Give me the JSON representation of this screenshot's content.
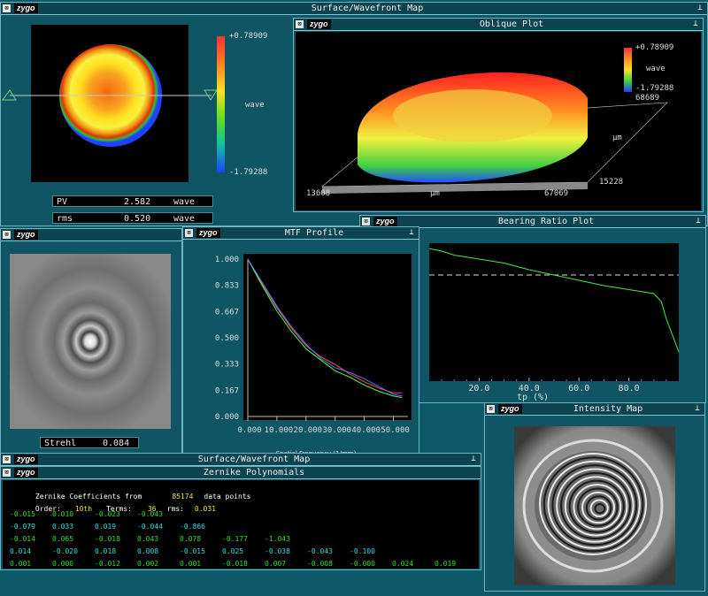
{
  "logo": "zygo",
  "close_glyph": "⊠",
  "pin_glyph": "⊥",
  "surface_map": {
    "title": "Surface/Wavefront Map",
    "scale_max": "+0.78909",
    "scale_min": "-1.79288",
    "unit": "wave",
    "pv_label": "PV",
    "pv_value": "2.582",
    "pv_unit": "wave",
    "rms_label": "rms",
    "rms_value": "0.520",
    "rms_unit": "wave"
  },
  "oblique_plot": {
    "title": "Oblique Plot",
    "scale_max": "+0.78909",
    "unit": "wave",
    "scale_min": "-1.79288",
    "z_extent": "68689",
    "x_min": "13608",
    "x_unit": "µm",
    "x_max": "67069",
    "y_unit": "µm",
    "y_min": "15228"
  },
  "psf": {
    "strehl_label": "Strehl",
    "strehl_value": "0.084"
  },
  "mtf_profile": {
    "title": "MTF Profile",
    "xlabel": "Spatial Frequency (1/mm)"
  },
  "bearing_ratio": {
    "title": "Bearing Ratio Plot",
    "xlabel": "tp (%)"
  },
  "intensity_map": {
    "title": "Intensity Map"
  },
  "zernike": {
    "back_title": "Surface/Wavefront Map",
    "title": "Zernike Polynomials",
    "header_prefix": "Zernike Coefficients from",
    "points": "85174",
    "header_suffix": "data points",
    "order_label": "Order:",
    "order_value": "10th",
    "terms_label": "Terms:",
    "terms_value": "36",
    "rms_label": "rms:",
    "rms_value": "0.031",
    "rows": [
      {
        "color": "#33dd33",
        "values": [
          "-0.015",
          "0.010",
          "-0.023",
          "-0.043"
        ]
      },
      {
        "color": "#33dddd",
        "values": [
          "-0.079",
          "0.033",
          "0.019",
          "-0.044",
          "-0.866"
        ]
      },
      {
        "color": "#33dd33",
        "values": [
          "-0.014",
          "0.065",
          "-0.018",
          "0.043",
          "0.078",
          "-0.177",
          "-1.043"
        ]
      },
      {
        "color": "#33dddd",
        "values": [
          "0.014",
          "-0.020",
          "0.018",
          "0.008",
          "-0.015",
          "0.025",
          "-0.038",
          "-0.043",
          "-0.100"
        ]
      },
      {
        "color": "#33dd33",
        "values": [
          "0.001",
          "0.000",
          "-0.012",
          "0.002",
          "0.001",
          "-0.018",
          "0.007",
          "-0.008",
          "-0.000",
          "0.024",
          "0.019"
        ]
      }
    ]
  },
  "chart_data": [
    {
      "type": "line",
      "title": "MTF Profile",
      "xlabel": "Spatial Frequency (1/mm)",
      "ylabel": "",
      "xlim": [
        0,
        55
      ],
      "ylim": [
        0,
        1
      ],
      "x_ticks": [
        "0.000",
        "10.000",
        "20.000",
        "30.000",
        "40.000",
        "50.000"
      ],
      "y_ticks": [
        "1.000",
        "0.833",
        "0.667",
        "0.500",
        "0.333",
        "0.167",
        "0.000"
      ],
      "series": [
        {
          "color": "#ff5050",
          "x": [
            0,
            5,
            10,
            15,
            20,
            25,
            30,
            35,
            40,
            45,
            50,
            53
          ],
          "y": [
            1.0,
            0.84,
            0.69,
            0.56,
            0.45,
            0.38,
            0.33,
            0.27,
            0.22,
            0.18,
            0.15,
            0.15
          ]
        },
        {
          "color": "#50ff50",
          "x": [
            0,
            5,
            10,
            15,
            20,
            25,
            30,
            35,
            40,
            45,
            50,
            53
          ],
          "y": [
            1.0,
            0.83,
            0.67,
            0.54,
            0.43,
            0.36,
            0.29,
            0.25,
            0.2,
            0.16,
            0.13,
            0.12
          ]
        },
        {
          "color": "#5080ff",
          "x": [
            0,
            5,
            10,
            15,
            20,
            25,
            30,
            35,
            40,
            45,
            50,
            53
          ],
          "y": [
            1.0,
            0.85,
            0.7,
            0.57,
            0.46,
            0.37,
            0.31,
            0.28,
            0.24,
            0.19,
            0.14,
            0.13
          ]
        }
      ]
    },
    {
      "type": "line",
      "title": "Bearing Ratio Plot",
      "xlabel": "tp (%)",
      "xlim": [
        0,
        100
      ],
      "ylim": [
        0,
        1
      ],
      "x_ticks": [
        "20.0",
        "40.0",
        "60.0",
        "80.0"
      ],
      "reference_level": 0.78,
      "series": [
        {
          "color": "#44ee44",
          "x": [
            0,
            5,
            10,
            20,
            30,
            40,
            50,
            60,
            70,
            80,
            90,
            93,
            95,
            100
          ],
          "y": [
            0.98,
            0.96,
            0.93,
            0.9,
            0.87,
            0.82,
            0.78,
            0.74,
            0.7,
            0.67,
            0.64,
            0.58,
            0.45,
            0.2
          ]
        }
      ]
    }
  ]
}
